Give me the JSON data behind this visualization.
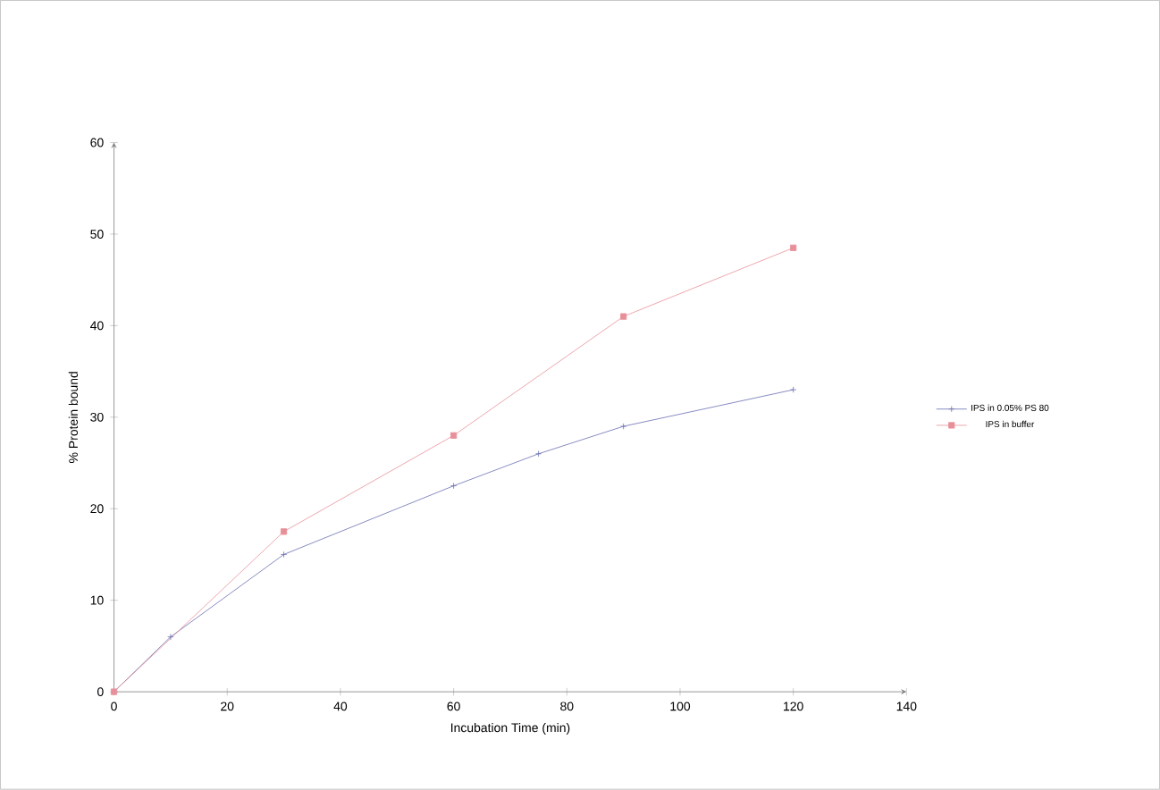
{
  "chart_data": {
    "type": "line",
    "xlabel": "Incubation Time (min)",
    "ylabel": "% Protein bound",
    "xlim": [
      0,
      140
    ],
    "xticks": [
      0,
      20,
      40,
      60,
      80,
      100,
      120,
      140
    ],
    "ylim": [
      0,
      60
    ],
    "yticks": [
      0,
      10,
      20,
      30,
      40,
      50,
      60
    ],
    "grid": false,
    "legend": "right",
    "series": [
      {
        "name": "IPS in 0.05% PS 80",
        "color": "#6a6fb0",
        "marker": "cross",
        "x": [
          0,
          10,
          30,
          60,
          75,
          90,
          120
        ],
        "values": [
          0,
          6,
          15,
          22.5,
          26,
          29,
          33
        ]
      },
      {
        "name": "IPS in buffer",
        "color": "#e8909a",
        "marker": "square",
        "x": [
          0,
          30,
          60,
          90,
          120
        ],
        "values": [
          0,
          17.5,
          28,
          41,
          48.5
        ]
      }
    ]
  }
}
